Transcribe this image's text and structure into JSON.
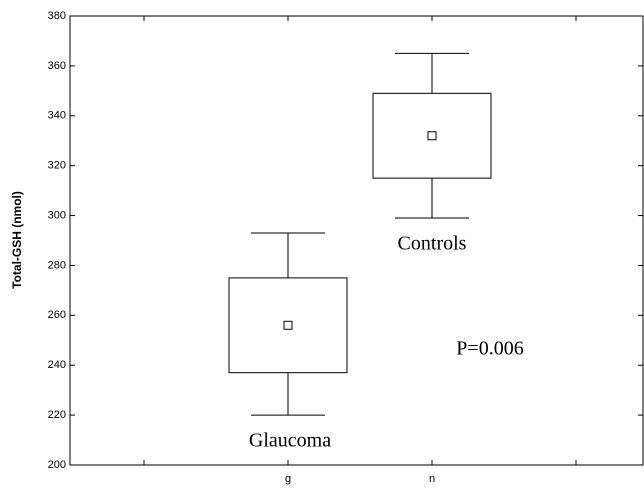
{
  "chart_data": {
    "type": "box",
    "y_label": "Total-GSH (nmol)",
    "categories": [
      "g",
      "n"
    ],
    "boxes": [
      {
        "whisker_low": 220,
        "q1": 237,
        "mean": 256,
        "q3": 275,
        "whisker_high": 293
      },
      {
        "whisker_low": 299,
        "q1": 315,
        "mean": 332,
        "q3": 349,
        "whisker_high": 365
      }
    ],
    "ylim": [
      200,
      380
    ],
    "yticks": [
      200,
      220,
      240,
      260,
      280,
      300,
      320,
      340,
      360,
      380
    ],
    "annotations": [
      "Glaucoma",
      "Controls",
      "P=0.006"
    ]
  }
}
